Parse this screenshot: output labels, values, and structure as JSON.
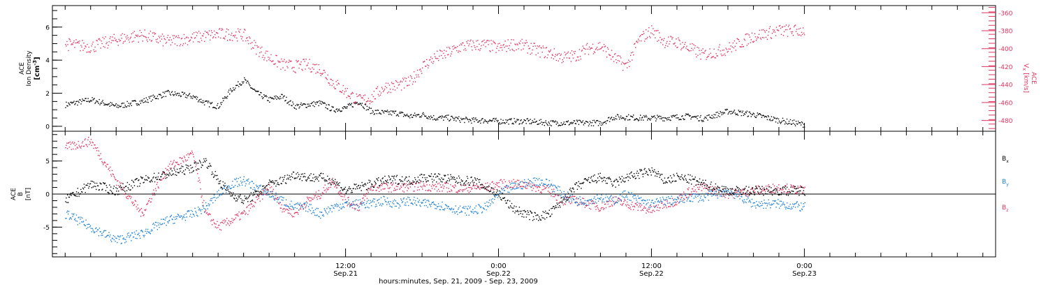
{
  "chart_data": [
    {
      "type": "scatter",
      "title": "",
      "ylabel": {
        "line1": "ACE",
        "line2": "Ion Density",
        "line3": "[cm",
        "sup": "-3",
        "close": "]"
      },
      "y2label": {
        "line1": "ACE",
        "var": "V",
        "sub": "x",
        "units": "[km/s]"
      },
      "ylim": [
        -0.3,
        7.3
      ],
      "y2lim": [
        -492,
        -352
      ],
      "yticks": [
        0,
        2,
        4,
        6
      ],
      "yticklabels": [
        "0",
        "2",
        "4",
        "6"
      ],
      "y2ticks": [
        -360,
        -380,
        -400,
        -420,
        -440,
        -460,
        -480
      ],
      "y2ticklabels": [
        "-360",
        "-380",
        "-400",
        "-420",
        "-440",
        "-460",
        "-480"
      ],
      "colors": {
        "density": "#000000",
        "vx": "#e0325f"
      },
      "series": [
        {
          "key": "density",
          "axis": "left",
          "x": [
            -10,
            -8,
            -6,
            -4,
            -2,
            0,
            1,
            2,
            3,
            4,
            5,
            6,
            7,
            8,
            9,
            10,
            11,
            12,
            13,
            14,
            15,
            16,
            17,
            18,
            19,
            20,
            21,
            22,
            23,
            24,
            25,
            26,
            27,
            28,
            29,
            30,
            31,
            32,
            33,
            34,
            35,
            36,
            37,
            38,
            39,
            40,
            42,
            44,
            46,
            48
          ],
          "y": [
            1.3,
            1.6,
            1.2,
            1.5,
            2.0,
            1.8,
            1.4,
            1.2,
            2.2,
            2.8,
            2.0,
            1.6,
            1.8,
            1.2,
            1.3,
            1.4,
            1.0,
            1.1,
            1.5,
            0.9,
            0.8,
            0.8,
            0.6,
            0.7,
            0.5,
            0.5,
            0.4,
            0.35,
            0.35,
            0.3,
            0.3,
            0.3,
            0.25,
            0.2,
            0.2,
            0.2,
            0.2,
            0.2,
            0.55,
            0.55,
            0.5,
            0.5,
            0.5,
            0.55,
            0.6,
            0.45,
            0.9,
            0.7,
            0.35,
            0.1
          ]
        },
        {
          "key": "vx",
          "axis": "right",
          "x": [
            -10,
            -8,
            -6,
            -4,
            -2,
            0,
            1,
            2,
            3,
            4,
            5,
            6,
            7,
            8,
            9,
            10,
            11,
            12,
            13,
            14,
            15,
            16,
            17,
            18,
            19,
            20,
            21,
            22,
            23,
            24,
            25,
            26,
            27,
            28,
            29,
            30,
            31,
            32,
            33,
            34,
            35,
            36,
            37,
            38,
            39,
            40,
            42,
            44,
            46,
            48
          ],
          "y": [
            -395,
            -398,
            -390,
            -385,
            -392,
            -388,
            -386,
            -384,
            -384,
            -385,
            -400,
            -410,
            -418,
            -420,
            -418,
            -423,
            -438,
            -448,
            -458,
            -455,
            -443,
            -441,
            -438,
            -420,
            -410,
            -405,
            -398,
            -396,
            -396,
            -400,
            -395,
            -397,
            -402,
            -405,
            -410,
            -408,
            -400,
            -397,
            -410,
            -420,
            -390,
            -380,
            -392,
            -393,
            -400,
            -407,
            -400,
            -386,
            -380,
            -380
          ]
        }
      ]
    },
    {
      "type": "scatter",
      "title": "",
      "ylabel": {
        "line1": "ACE",
        "line2": "B",
        "line3": "[nT]"
      },
      "ylim": [
        -9.5,
        9.5
      ],
      "yticks": [
        -5,
        0,
        5
      ],
      "yticklabels": [
        "-5",
        "0",
        "5"
      ],
      "colors": {
        "bx": "#000000",
        "by": "#1a7fd6",
        "bz": "#e0325f"
      },
      "legend": [
        {
          "var": "B",
          "sub": "x",
          "color": "#000000"
        },
        {
          "var": "B",
          "sub": "y",
          "color": "#1a7fd6"
        },
        {
          "var": "B",
          "sub": "z",
          "color": "#e0325f"
        }
      ],
      "series": [
        {
          "key": "bx",
          "x": [
            -10,
            -8,
            -6,
            -4,
            -2,
            0,
            1,
            2,
            3,
            4,
            5,
            6,
            7,
            8,
            9,
            10,
            11,
            12,
            13,
            14,
            15,
            16,
            17,
            18,
            19,
            20,
            21,
            22,
            23,
            24,
            25,
            26,
            27,
            28,
            29,
            30,
            31,
            32,
            33,
            34,
            35,
            36,
            37,
            38,
            39,
            40,
            42,
            44,
            46,
            48
          ],
          "y": [
            -1,
            1.5,
            0.5,
            2,
            3,
            4,
            5,
            2,
            0,
            -1,
            0,
            1.5,
            2,
            3,
            2.5,
            2.5,
            2,
            0.5,
            1,
            1.5,
            2,
            2.2,
            2,
            2.5,
            2.5,
            2.3,
            2,
            2,
            1,
            0,
            -2,
            -3,
            -3.5,
            -3,
            -1,
            1,
            2,
            2.5,
            1.5,
            2.5,
            3,
            3.5,
            2,
            2.5,
            2.2,
            1.5,
            0.5,
            0.5,
            0.5,
            0.5
          ]
        },
        {
          "key": "by",
          "x": [
            -10,
            -8,
            -6,
            -4,
            -2,
            0,
            1,
            2,
            3,
            4,
            5,
            6,
            7,
            8,
            9,
            10,
            11,
            12,
            13,
            14,
            15,
            16,
            17,
            18,
            19,
            20,
            21,
            22,
            23,
            24,
            25,
            26,
            27,
            28,
            29,
            30,
            31,
            32,
            33,
            34,
            35,
            36,
            37,
            38,
            39,
            40,
            42,
            44,
            46,
            48
          ],
          "y": [
            -3,
            -5,
            -7,
            -6,
            -4,
            -3,
            -2,
            0,
            1.5,
            2,
            1,
            0,
            -1,
            -2,
            -2,
            -3,
            -2,
            -1.5,
            -1.5,
            -1.5,
            -1,
            -1.5,
            -1,
            -1.5,
            -1.5,
            -2,
            -2.5,
            -2.5,
            -2,
            0,
            1,
            1.5,
            2,
            1.5,
            0,
            -1,
            -1,
            -0.5,
            -1,
            0,
            -1,
            -1.5,
            -1,
            -1,
            -0.5,
            -0.5,
            0.5,
            -1.5,
            -1.5,
            -2
          ]
        },
        {
          "key": "bz",
          "x": [
            -10,
            -8,
            -6,
            -4,
            -2,
            0,
            1,
            2,
            3,
            4,
            5,
            6,
            7,
            8,
            9,
            10,
            11,
            12,
            13,
            14,
            15,
            16,
            17,
            18,
            19,
            20,
            21,
            22,
            23,
            24,
            25,
            26,
            27,
            28,
            29,
            30,
            31,
            32,
            33,
            34,
            35,
            36,
            37,
            38,
            39,
            40,
            42,
            44,
            46,
            48
          ],
          "y": [
            7,
            8,
            2,
            -3,
            4,
            6,
            -3,
            -5,
            -4,
            -3,
            -1,
            1,
            -2,
            -3,
            -1,
            0,
            2,
            -1,
            -2,
            1,
            1,
            1,
            1,
            1.3,
            1,
            1,
            0.8,
            1,
            1,
            1.5,
            1.5,
            1.5,
            1,
            0.5,
            -1,
            -1,
            -1.5,
            -2,
            -1,
            -1.5,
            -2,
            -2.5,
            -1.5,
            -1,
            0.5,
            1,
            0,
            0.5,
            1,
            0.5
          ]
        }
      ]
    }
  ],
  "xaxis": {
    "xlim": [
      -11,
      63
    ],
    "ticks": [
      {
        "hours": 12,
        "time": "12:00",
        "date": "Sep.21"
      },
      {
        "hours": 24,
        "time": "0:00",
        "date": "Sep.22"
      },
      {
        "hours": 36,
        "time": "12:00",
        "date": "Sep.22"
      },
      {
        "hours": 48,
        "time": "0:00",
        "date": "Sep.23"
      }
    ],
    "title": "hours:minutes, Sep. 21, 2009 - Sep. 23, 2009"
  }
}
